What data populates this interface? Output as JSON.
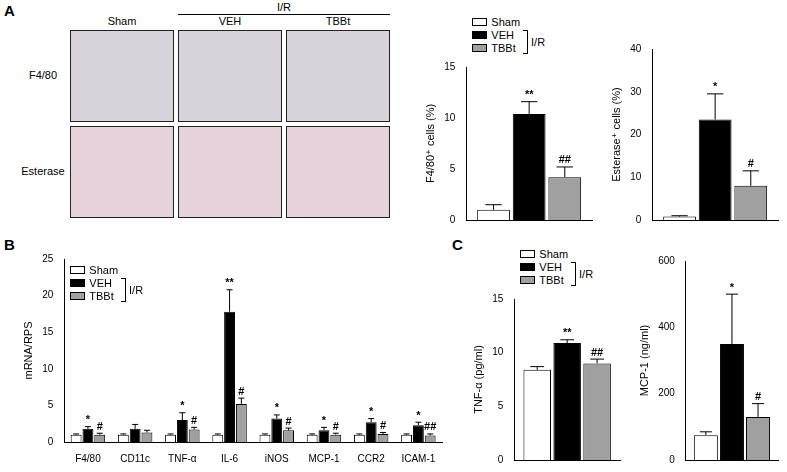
{
  "panel_labels": [
    "A",
    "B",
    "C"
  ],
  "micrographs": {
    "columns": [
      "Sham",
      "VEH",
      "TBBt"
    ],
    "group_label": "I/R",
    "rows": [
      "F4/80",
      "Esterase"
    ]
  },
  "chart_data": [
    {
      "type": "bar",
      "categories": [
        null
      ],
      "y_label": "F4/80⁺ cells (%)",
      "ylim": [
        0,
        15
      ],
      "yticks": [
        0,
        5,
        10,
        15
      ],
      "grid": false,
      "tick_labels": "y",
      "legend": "above",
      "annotation": "I/R",
      "series": [
        {
          "name": "Sham",
          "color": "#ffffff",
          "values": [
            1.0
          ],
          "errors": [
            0.5
          ]
        },
        {
          "name": "VEH",
          "color": "#000000",
          "values": [
            10.4
          ],
          "errors": [
            1.2
          ],
          "marks": [
            "**"
          ]
        },
        {
          "name": "TBBt",
          "color": "#a0a0a0",
          "values": [
            4.2
          ],
          "errors": [
            1.0
          ],
          "marks": [
            "##"
          ]
        }
      ]
    },
    {
      "type": "bar",
      "categories": [
        null
      ],
      "y_label": "Esterase⁺ cells (%)",
      "ylim": [
        0,
        40
      ],
      "yticks": [
        0,
        10,
        20,
        30,
        40
      ],
      "grid": false,
      "tick_labels": "y",
      "series": [
        {
          "name": "Sham",
          "color": "#ffffff",
          "values": [
            0.8
          ],
          "errors": [
            0.2
          ]
        },
        {
          "name": "VEH",
          "color": "#000000",
          "values": [
            23.5
          ],
          "errors": [
            6.0
          ],
          "marks": [
            "*"
          ]
        },
        {
          "name": "TBBt",
          "color": "#a0a0a0",
          "values": [
            8.0
          ],
          "errors": [
            3.5
          ],
          "marks": [
            "#"
          ]
        }
      ]
    },
    {
      "type": "bar",
      "categories": [
        "F4/80",
        "CD11c",
        "TNF-α",
        "IL-6",
        "iNOS",
        "MCP-1",
        "CCR2",
        "ICAM-1"
      ],
      "y_label": "mRNA/RPS",
      "ylim": [
        0,
        25
      ],
      "yticks": [
        0,
        5,
        10,
        15,
        20,
        25
      ],
      "grid": false,
      "legend": "upper left",
      "annotation": "I/R",
      "series": [
        {
          "name": "Sham",
          "color": "#ffffff",
          "values": [
            1.0,
            1.0,
            1.0,
            1.0,
            1.0,
            1.0,
            1.0,
            1.0
          ],
          "errors": [
            0.1,
            0.1,
            0.1,
            0.1,
            0.1,
            0.1,
            0.1,
            0.1
          ]
        },
        {
          "name": "VEH",
          "color": "#000000",
          "values": [
            1.8,
            1.8,
            3.0,
            17.8,
            3.2,
            1.6,
            2.7,
            2.3
          ],
          "errors": [
            0.3,
            0.6,
            1.0,
            3.0,
            0.5,
            0.4,
            0.5,
            0.4
          ],
          "marks": [
            "*",
            null,
            "*",
            "**",
            "*",
            "*",
            "*",
            "*"
          ]
        },
        {
          "name": "TBBt",
          "color": "#a0a0a0",
          "values": [
            1.0,
            1.3,
            1.7,
            5.2,
            1.6,
            1.0,
            1.1,
            0.9
          ],
          "errors": [
            0.2,
            0.3,
            0.3,
            0.8,
            0.3,
            0.2,
            0.2,
            0.2
          ],
          "marks": [
            "#",
            null,
            "#",
            "#",
            "#",
            "#",
            "#",
            "##"
          ]
        }
      ]
    },
    {
      "type": "bar",
      "categories": [
        null
      ],
      "y_label": "TNF-α (pg/ml)",
      "ylim": [
        0,
        15
      ],
      "yticks": [
        0,
        5,
        10,
        15
      ],
      "grid": false,
      "tick_labels": "y",
      "legend": "above",
      "annotation": "I/R",
      "series": [
        {
          "name": "Sham",
          "color": "#ffffff",
          "values": [
            8.4
          ],
          "errors": [
            0.3
          ]
        },
        {
          "name": "VEH",
          "color": "#000000",
          "values": [
            10.9
          ],
          "errors": [
            0.3
          ],
          "marks": [
            "**"
          ]
        },
        {
          "name": "TBBt",
          "color": "#a0a0a0",
          "values": [
            9.0
          ],
          "errors": [
            0.4
          ],
          "marks": [
            "##"
          ]
        }
      ]
    },
    {
      "type": "bar",
      "categories": [
        null
      ],
      "y_label": "MCP-1 (ng/ml)",
      "ylim": [
        0,
        600
      ],
      "yticks": [
        0,
        200,
        400,
        600
      ],
      "grid": false,
      "tick_labels": "y",
      "series": [
        {
          "name": "Sham",
          "color": "#ffffff",
          "values": [
            75
          ],
          "errors": [
            10
          ]
        },
        {
          "name": "VEH",
          "color": "#000000",
          "values": [
            350
          ],
          "errors": [
            150
          ],
          "marks": [
            "*"
          ]
        },
        {
          "name": "TBBt",
          "color": "#a0a0a0",
          "values": [
            130
          ],
          "errors": [
            40
          ],
          "marks": [
            "#"
          ]
        }
      ]
    }
  ]
}
